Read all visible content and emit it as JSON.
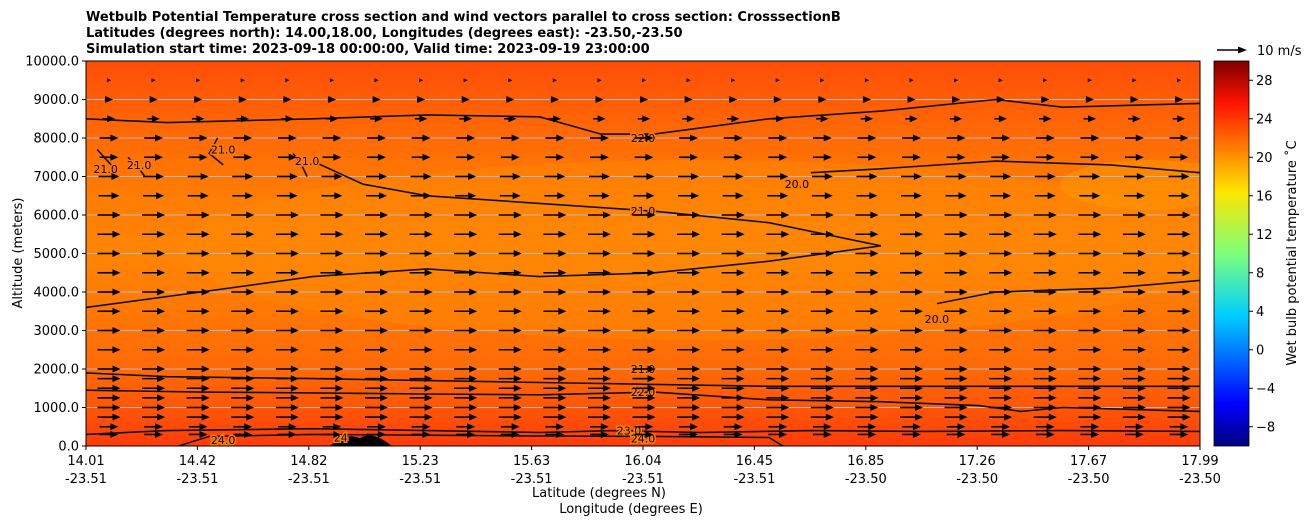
{
  "chart_data": {
    "type": "heatmap",
    "title_lines": [
      "Wetbulb Potential Temperature cross section and wind vectors parallel to cross section: CrosssectionB",
      "Latitudes (degrees north): 14.00,18.00, Longitudes (degrees east): -23.50,-23.50",
      "Simulation start time: 2023-09-18 00:00:00, Valid time: 2023-09-19 23:00:00"
    ],
    "ylabel": "Altitude (meters)",
    "xlabel_lat": "Latitude (degrees N)",
    "xlabel_lon": "Longitude (degrees E)",
    "xlim": [
      14.01,
      17.99
    ],
    "ylim": [
      0,
      10000
    ],
    "grid": "horizontal",
    "x_ticks": [
      {
        "lat": "14.01",
        "lon": "-23.51"
      },
      {
        "lat": "14.42",
        "lon": "-23.51"
      },
      {
        "lat": "14.82",
        "lon": "-23.51"
      },
      {
        "lat": "15.23",
        "lon": "-23.51"
      },
      {
        "lat": "15.63",
        "lon": "-23.51"
      },
      {
        "lat": "16.04",
        "lon": "-23.51"
      },
      {
        "lat": "16.45",
        "lon": "-23.51"
      },
      {
        "lat": "16.85",
        "lon": "-23.50"
      },
      {
        "lat": "17.26",
        "lon": "-23.50"
      },
      {
        "lat": "17.67",
        "lon": "-23.50"
      },
      {
        "lat": "17.99",
        "lon": "-23.50"
      }
    ],
    "y_ticks": [
      {
        "value": 0,
        "label": "0.0"
      },
      {
        "value": 1000,
        "label": "1000.0"
      },
      {
        "value": 2000,
        "label": "2000.0"
      },
      {
        "value": 3000,
        "label": "3000.0"
      },
      {
        "value": 4000,
        "label": "4000.0"
      },
      {
        "value": 5000,
        "label": "5000.0"
      },
      {
        "value": 6000,
        "label": "6000.0"
      },
      {
        "value": 7000,
        "label": "7000.0"
      },
      {
        "value": 8000,
        "label": "8000.0"
      },
      {
        "value": 9000,
        "label": "9000.0"
      },
      {
        "value": 10000,
        "label": "10000.0"
      }
    ],
    "colorbar": {
      "label": "Wet bulb potential temperature ˚C",
      "range": [
        -10,
        30
      ],
      "colormap": "jet",
      "ticks": [
        {
          "value": -8,
          "label": "−8"
        },
        {
          "value": -4,
          "label": "−4"
        },
        {
          "value": 0,
          "label": "0"
        },
        {
          "value": 4,
          "label": "4"
        },
        {
          "value": 8,
          "label": "8"
        },
        {
          "value": 12,
          "label": "12"
        },
        {
          "value": 16,
          "label": "16"
        },
        {
          "value": 20,
          "label": "20"
        },
        {
          "value": 24,
          "label": "24"
        },
        {
          "value": 28,
          "label": "28"
        }
      ]
    },
    "quiver_key": {
      "label": "10 m/s",
      "speed": 10
    },
    "wind_levels": [
      {
        "z": 300,
        "speed": 8
      },
      {
        "z": 500,
        "speed": 8
      },
      {
        "z": 750,
        "speed": 10
      },
      {
        "z": 1000,
        "speed": 10
      },
      {
        "z": 1250,
        "speed": 10
      },
      {
        "z": 1500,
        "speed": 10
      },
      {
        "z": 1750,
        "speed": 10
      },
      {
        "z": 2000,
        "speed": 10
      },
      {
        "z": 2500,
        "speed": 10
      },
      {
        "z": 3000,
        "speed": 10
      },
      {
        "z": 3500,
        "speed": 10
      },
      {
        "z": 4000,
        "speed": 10
      },
      {
        "z": 4500,
        "speed": 10
      },
      {
        "z": 5000,
        "speed": 10
      },
      {
        "z": 5500,
        "speed": 10
      },
      {
        "z": 6000,
        "speed": 10
      },
      {
        "z": 6500,
        "speed": 9
      },
      {
        "z": 7000,
        "speed": 9
      },
      {
        "z": 7500,
        "speed": 8
      },
      {
        "z": 8000,
        "speed": 8
      },
      {
        "z": 8500,
        "speed": 5
      },
      {
        "z": 9000,
        "speed": 3
      },
      {
        "z": 9500,
        "speed": 1
      }
    ],
    "contours": [
      {
        "level": "21.0",
        "labels": [
          {
            "x": 16.0,
            "z": 2000,
            "text": "21.0"
          }
        ],
        "points": [
          [
            14.01,
            1900
          ],
          [
            14.3,
            1800
          ],
          [
            14.82,
            1750
          ],
          [
            15.23,
            1700
          ],
          [
            15.63,
            1650
          ],
          [
            16.04,
            1600
          ],
          [
            16.45,
            1550
          ],
          [
            16.85,
            1550
          ],
          [
            17.26,
            1550
          ],
          [
            17.67,
            1550
          ],
          [
            17.99,
            1550
          ]
        ]
      },
      {
        "level": "22.0",
        "labels": [
          {
            "x": 16.0,
            "z": 1400,
            "text": "22.0"
          }
        ],
        "points": [
          [
            14.01,
            1450
          ],
          [
            14.42,
            1400
          ],
          [
            14.82,
            1380
          ],
          [
            15.23,
            1350
          ],
          [
            15.63,
            1330
          ],
          [
            16.04,
            1400
          ],
          [
            16.45,
            1200
          ],
          [
            16.85,
            1150
          ],
          [
            17.2,
            1050
          ],
          [
            17.35,
            900
          ],
          [
            17.5,
            1000
          ],
          [
            17.99,
            900
          ]
        ]
      },
      {
        "level": "23.0",
        "labels": [
          {
            "x": 15.95,
            "z": 400,
            "text": "23.0"
          }
        ],
        "points": [
          [
            14.01,
            300
          ],
          [
            14.3,
            400
          ],
          [
            14.82,
            450
          ],
          [
            15.23,
            400
          ],
          [
            15.63,
            350
          ],
          [
            15.9,
            400
          ],
          [
            16.2,
            350
          ],
          [
            16.6,
            400
          ],
          [
            17.0,
            380
          ],
          [
            17.5,
            400
          ],
          [
            17.99,
            380
          ]
        ]
      },
      {
        "level": "24.0",
        "labels": [
          {
            "x": 16.0,
            "z": 200,
            "text": "24.0"
          },
          {
            "x": 14.5,
            "z": 150,
            "text": "24.0"
          },
          {
            "x": 14.92,
            "z": 220,
            "text": "24"
          }
        ],
        "points": [
          [
            14.34,
            0
          ],
          [
            14.45,
            250
          ],
          [
            14.82,
            300
          ],
          [
            15.23,
            280
          ],
          [
            15.63,
            260
          ],
          [
            16.04,
            250
          ],
          [
            16.45,
            220
          ],
          [
            16.5,
            0
          ]
        ]
      },
      {
        "level": "22.0",
        "labels": [
          {
            "x": 16.0,
            "z": 8000,
            "text": "22.0"
          }
        ],
        "points": [
          [
            14.01,
            8500
          ],
          [
            14.3,
            8400
          ],
          [
            14.82,
            8500
          ],
          [
            15.23,
            8600
          ],
          [
            15.63,
            8550
          ],
          [
            15.85,
            8100
          ],
          [
            16.04,
            8100
          ],
          [
            16.45,
            8500
          ],
          [
            16.85,
            8700
          ],
          [
            17.26,
            9000
          ],
          [
            17.5,
            8800
          ],
          [
            17.99,
            8900
          ]
        ]
      },
      {
        "level": "21.0",
        "labels": [
          {
            "x": 16.0,
            "z": 6100,
            "text": "21.0"
          }
        ],
        "points": [
          [
            14.82,
            7400
          ],
          [
            15.0,
            6800
          ],
          [
            15.23,
            6500
          ],
          [
            15.63,
            6300
          ],
          [
            16.04,
            6100
          ],
          [
            16.45,
            5800
          ],
          [
            16.85,
            5200
          ],
          [
            16.45,
            4800
          ],
          [
            16.04,
            4500
          ],
          [
            15.63,
            4400
          ],
          [
            15.23,
            4600
          ],
          [
            14.82,
            4400
          ],
          [
            14.42,
            4000
          ],
          [
            14.01,
            3600
          ]
        ]
      },
      {
        "level": "20.0",
        "labels": [
          {
            "x": 16.55,
            "z": 6800,
            "text": "20.0"
          }
        ],
        "points": [
          [
            16.6,
            7100
          ],
          [
            16.85,
            7200
          ],
          [
            17.26,
            7400
          ],
          [
            17.67,
            7300
          ],
          [
            17.99,
            7100
          ]
        ]
      },
      {
        "level": "20.0",
        "labels": [
          {
            "x": 17.05,
            "z": 3300,
            "text": "20.0"
          }
        ],
        "points": [
          [
            17.05,
            3700
          ],
          [
            17.26,
            4000
          ],
          [
            17.67,
            4100
          ],
          [
            17.99,
            4300
          ]
        ]
      },
      {
        "level": "21.0",
        "labels": [
          {
            "x": 14.08,
            "z": 7200,
            "text": "21.0"
          }
        ],
        "points": [
          [
            14.05,
            7700
          ],
          [
            14.1,
            7300
          ],
          [
            14.12,
            7100
          ]
        ]
      },
      {
        "level": "21.0",
        "labels": [
          {
            "x": 14.2,
            "z": 7300,
            "text": "21.0"
          }
        ],
        "points": [
          [
            14.16,
            7500
          ],
          [
            14.2,
            7200
          ],
          [
            14.22,
            7000
          ]
        ]
      },
      {
        "level": "21.0",
        "labels": [
          {
            "x": 14.5,
            "z": 7700,
            "text": "21.0"
          }
        ],
        "points": [
          [
            14.48,
            8000
          ],
          [
            14.45,
            7600
          ],
          [
            14.5,
            7300
          ]
        ]
      },
      {
        "level": "21.0",
        "labels": [
          {
            "x": 14.8,
            "z": 7400,
            "text": "21.0"
          }
        ],
        "points": [
          [
            14.75,
            7600
          ],
          [
            14.78,
            7300
          ],
          [
            14.8,
            7000
          ]
        ]
      }
    ]
  }
}
